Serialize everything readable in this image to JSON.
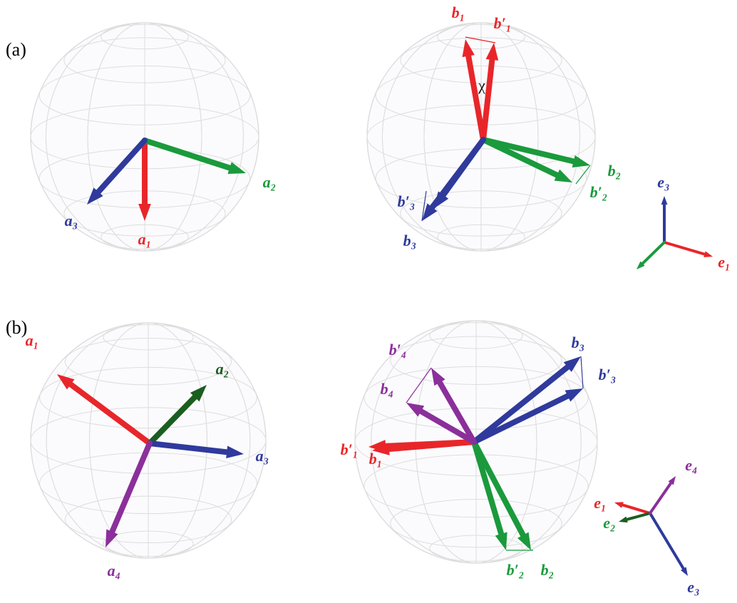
{
  "panels": [
    {
      "tag": "(a)",
      "left_vectors": [
        "a₁",
        "a₂",
        "a₃"
      ],
      "right_vectors": [
        "b₁",
        "b′₁",
        "b₂",
        "b′₂",
        "b₃",
        "b′₃"
      ],
      "angle": "χ",
      "frame": [
        "e₃",
        "e₁"
      ]
    },
    {
      "tag": "(b)",
      "left_vectors": [
        "a₁",
        "a₂",
        "a₃",
        "a₄"
      ],
      "right_vectors": [
        "b₁",
        "b′₁",
        "b₂",
        "b′₂",
        "b₃",
        "b′₃",
        "b₄",
        "b′₄"
      ],
      "frame": [
        "e₁",
        "e₂",
        "e₃",
        "e₄"
      ]
    }
  ]
}
